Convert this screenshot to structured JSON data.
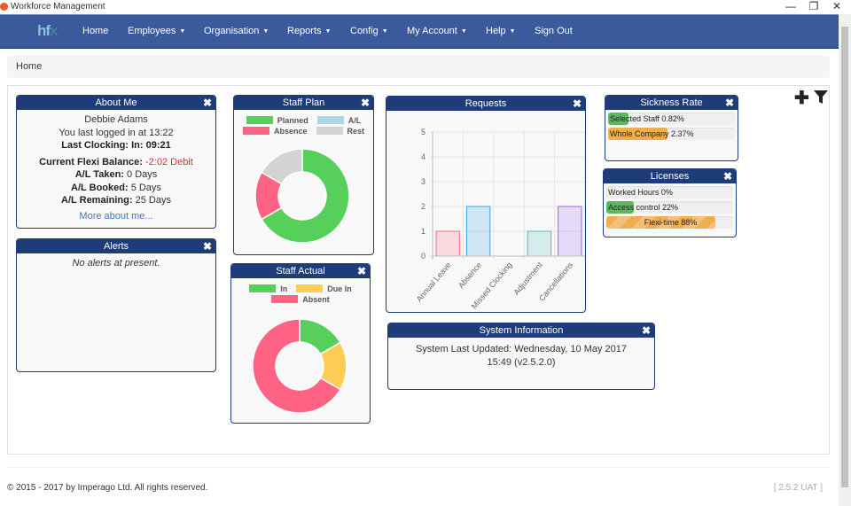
{
  "window": {
    "title": "Workforce Management",
    "min": "—",
    "restore": "❐",
    "close": "✕"
  },
  "nav": {
    "logo_a": "hf",
    "logo_b": "x",
    "items": [
      {
        "label": "Home",
        "dropdown": false
      },
      {
        "label": "Employees",
        "dropdown": true
      },
      {
        "label": "Organisation",
        "dropdown": true
      },
      {
        "label": "Reports",
        "dropdown": true
      },
      {
        "label": "Config",
        "dropdown": true
      },
      {
        "label": "My Account",
        "dropdown": true
      },
      {
        "label": "Help",
        "dropdown": true
      },
      {
        "label": "Sign Out",
        "dropdown": false
      }
    ]
  },
  "breadcrumb": "Home",
  "about": {
    "title": "About Me",
    "name": "Debbie Adams",
    "last_login": "You last logged in at 13:22",
    "last_clocking": "Last Clocking: In: 09:21",
    "flexi_label": "Current Flexi Balance:",
    "flexi_value": "-2:02 Debit",
    "taken_label": "A/L Taken:",
    "taken_value": "0 Days",
    "booked_label": "A/L Booked:",
    "booked_value": "5 Days",
    "remaining_label": "A/L Remaining:",
    "remaining_value": "25 Days",
    "more": "More about me..."
  },
  "alerts": {
    "title": "Alerts",
    "message": "No alerts at present."
  },
  "system": {
    "title": "System Information",
    "line1": "System Last Updated: Wednesday, 10 May 2017",
    "line2": "15:49 (v2.5.2.0)"
  },
  "sickness": {
    "title": "Sickness Rate",
    "bars": [
      {
        "label": "Selected Staff 0.82%",
        "value": 0.82,
        "color": "#5cb85c"
      },
      {
        "label": "Whole Company 2.37%",
        "value": 2.37,
        "color": "#f0ad4e"
      }
    ]
  },
  "licenses": {
    "title": "Licenses",
    "bars": [
      {
        "label": "Worked Hours 0%",
        "value": 0,
        "color": "#5cb85c"
      },
      {
        "label": "Access control 22%",
        "value": 22,
        "color": "#5cb85c"
      },
      {
        "label": "Flexi-time 88%",
        "value": 88,
        "color": "#f0ad4e",
        "striped": true
      }
    ]
  },
  "close_icon": "✖",
  "tools": {
    "add": "✚",
    "filter": "filter-icon"
  },
  "footer": {
    "copyright": "© 2015 - 2017 by Imperago Ltd. All rights reserved.",
    "version": "[ 2.5.2 UAT ]"
  },
  "chart_data": [
    {
      "type": "pie",
      "title": "Staff Plan",
      "donut": true,
      "labels": [
        "Planned",
        "A/L",
        "Absence",
        "Rest"
      ],
      "values": [
        8,
        0,
        2,
        2
      ],
      "colors": [
        "#56d05a",
        "#a8d8e6",
        "#ff6384",
        "#d3d3d3"
      ]
    },
    {
      "type": "pie",
      "title": "Staff Actual",
      "donut": true,
      "labels": [
        "In",
        "Due In",
        "Absent"
      ],
      "values": [
        1,
        1,
        4
      ],
      "colors": [
        "#56d05a",
        "#ffcd56",
        "#ff6384"
      ]
    },
    {
      "type": "bar",
      "title": "Requests",
      "categories": [
        "Annual Leave",
        "Absence",
        "Missed Clocking",
        "Adjustment",
        "Cancellations"
      ],
      "values": [
        1,
        2,
        0,
        1,
        2
      ],
      "ylim": [
        0,
        5
      ],
      "yticks": [
        0,
        1,
        2,
        3,
        4,
        5
      ],
      "grid": true,
      "colors": [
        "#ff6384",
        "#36a2eb",
        "#ffce56",
        "#4bc0c0",
        "#9966ff"
      ]
    }
  ]
}
